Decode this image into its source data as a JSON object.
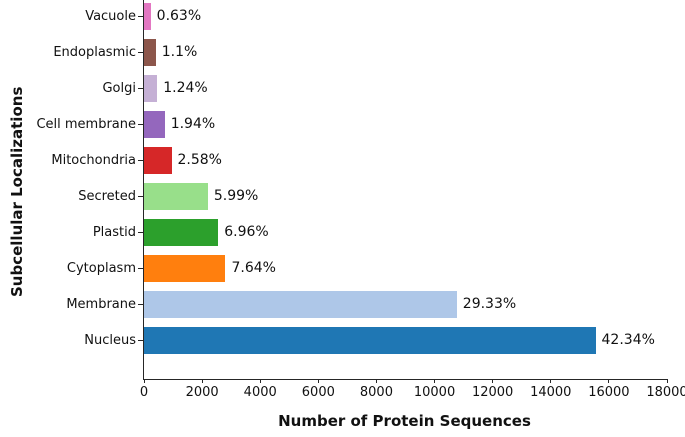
{
  "chart_data": {
    "type": "bar",
    "orientation": "horizontal",
    "title": "",
    "xlabel": "Number of Protein Sequences",
    "ylabel": "Subcellular Localizations",
    "xlim": [
      0,
      18000
    ],
    "x_ticks": [
      0,
      2000,
      4000,
      6000,
      8000,
      10000,
      12000,
      14000,
      16000,
      18000
    ],
    "grid": false,
    "legend": "none",
    "value_labels_shown_as": "percent of total protein sequences",
    "bars": [
      {
        "category": "Vacuole",
        "value_est": 230,
        "percent_label": "0.63%",
        "color": "#e377c2"
      },
      {
        "category": "Endoplasmic",
        "value_est": 405,
        "percent_label": "1.1%",
        "color": "#8c564b"
      },
      {
        "category": "Golgi",
        "value_est": 455,
        "percent_label": "1.24%",
        "color": "#c5b0d5"
      },
      {
        "category": "Cell membrane",
        "value_est": 712,
        "percent_label": "1.94%",
        "color": "#9467bd"
      },
      {
        "category": "Mitochondria",
        "value_est": 947,
        "percent_label": "2.58%",
        "color": "#d62728"
      },
      {
        "category": "Secreted",
        "value_est": 2198,
        "percent_label": "5.99%",
        "color": "#98df8a"
      },
      {
        "category": "Plastid",
        "value_est": 2555,
        "percent_label": "6.96%",
        "color": "#2ca02c"
      },
      {
        "category": "Cytoplasm",
        "value_est": 2804,
        "percent_label": "7.64%",
        "color": "#ff7f0e"
      },
      {
        "category": "Membrane",
        "value_est": 10765,
        "percent_label": "29.33%",
        "color": "#aec7e8"
      },
      {
        "category": "Nucleus",
        "value_est": 15540,
        "percent_label": "42.34%",
        "color": "#1f77b4"
      }
    ]
  }
}
